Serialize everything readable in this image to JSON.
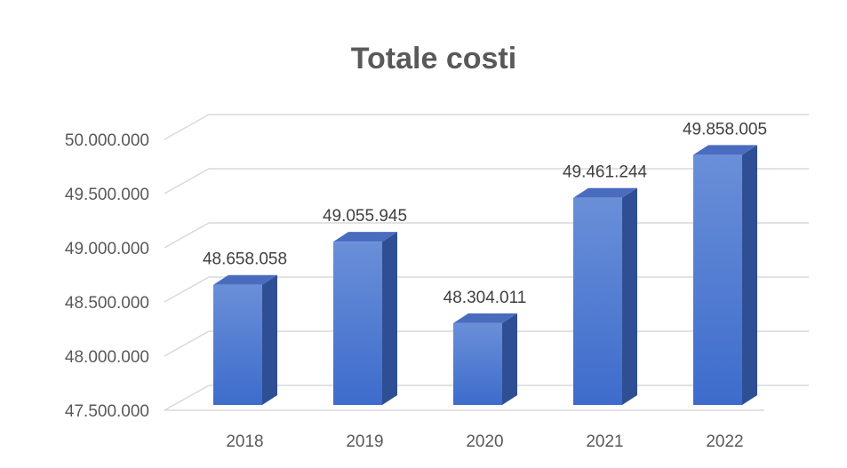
{
  "chart_data": {
    "type": "bar",
    "title": "Totale costi",
    "categories": [
      "2018",
      "2019",
      "2020",
      "2021",
      "2022"
    ],
    "values": [
      48658058,
      49055945,
      48304011,
      49461244,
      49858005
    ],
    "data_labels": [
      "48.658.058",
      "49.055.945",
      "48.304.011",
      "49.461.244",
      "49.858.005"
    ],
    "ylim": [
      47500000,
      50000000
    ],
    "y_ticks": [
      47500000,
      48000000,
      48500000,
      49000000,
      49500000,
      50000000
    ],
    "y_tick_labels": [
      "47.500.000",
      "48.000.000",
      "48.500.000",
      "49.000.000",
      "49.500.000",
      "50.000.000"
    ],
    "xlabel": "",
    "ylabel": "",
    "grid": true,
    "legend": "none",
    "style": "3d-clustered-column",
    "colors": {
      "bar_front_top": "#6a8fd8",
      "bar_front_bottom": "#3d6ccc",
      "bar_side": "#2f4f94",
      "bar_top": "#4a6cbf",
      "grid": "#d9d9d9",
      "text": "#595959"
    }
  }
}
